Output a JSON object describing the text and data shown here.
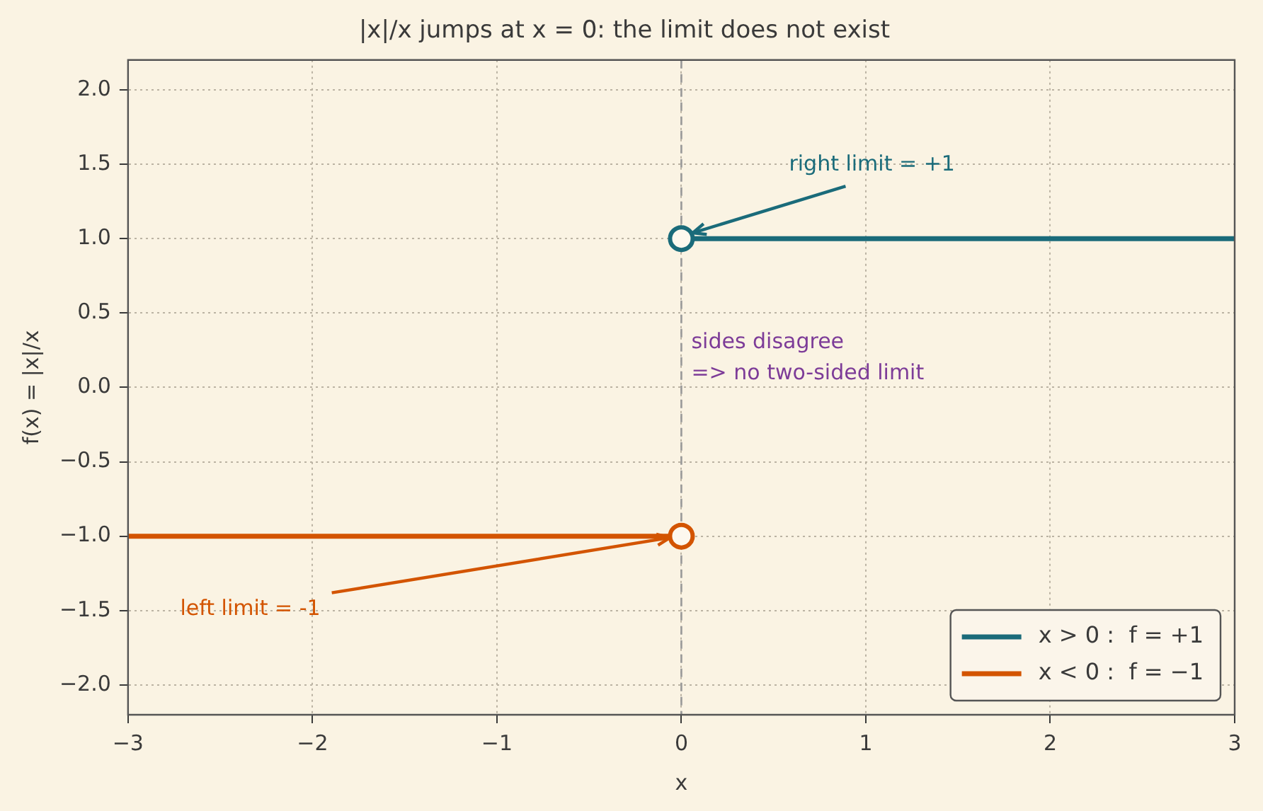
{
  "chart_data": {
    "type": "line",
    "title": "|x|/x jumps at x = 0: the limit does not exist",
    "xlabel": "x",
    "ylabel": "f(x) = |x|/x",
    "xlim": [
      -3,
      3
    ],
    "ylim": [
      -2.2,
      2.2
    ],
    "xticks": [
      {
        "value": -3,
        "label": "−3"
      },
      {
        "value": -2,
        "label": "−2"
      },
      {
        "value": -1,
        "label": "−1"
      },
      0,
      1,
      2,
      3
    ],
    "yticks": [
      {
        "value": -2,
        "label": "−2.0"
      },
      {
        "value": -1.5,
        "label": "−1.5"
      },
      {
        "value": -1,
        "label": "−1.0"
      },
      {
        "value": -0.5,
        "label": "−0.5"
      },
      {
        "value": 0,
        "label": "0.0"
      },
      {
        "value": 0.5,
        "label": "0.5"
      },
      {
        "value": 1,
        "label": "1.0"
      },
      {
        "value": 1.5,
        "label": "1.5"
      },
      {
        "value": 2,
        "label": "2.0"
      }
    ],
    "grid": true,
    "legend": "bottom right",
    "line_style": "solid",
    "series": [
      {
        "name": "x > 0 :  f = +1",
        "color": "#1a6b7a",
        "x": [
          0,
          3
        ],
        "values": [
          1,
          1
        ],
        "marker": "none"
      },
      {
        "name": "x < 0 :  f = −1",
        "color": "#d35400",
        "x": [
          -3,
          0
        ],
        "values": [
          -1,
          -1
        ],
        "marker": "none"
      },
      {
        "type": "scatter",
        "color": "#1a6b7a",
        "x": [
          0
        ],
        "values": [
          1
        ],
        "marker": "circle"
      },
      {
        "type": "scatter",
        "color": "#d35400",
        "x": [
          0
        ],
        "values": [
          -1
        ],
        "marker": "circle"
      }
    ],
    "ref_lines": [
      {
        "axis": "x",
        "value": 0,
        "color": "#999999",
        "line_style": "dashed"
      }
    ],
    "annotations": [
      {
        "text": "right limit = +1",
        "x": 0,
        "y": 1
      },
      {
        "text": "left limit = -1",
        "x": 0,
        "y": -1
      },
      "sides disagree\n=> no two-sided limit"
    ]
  }
}
